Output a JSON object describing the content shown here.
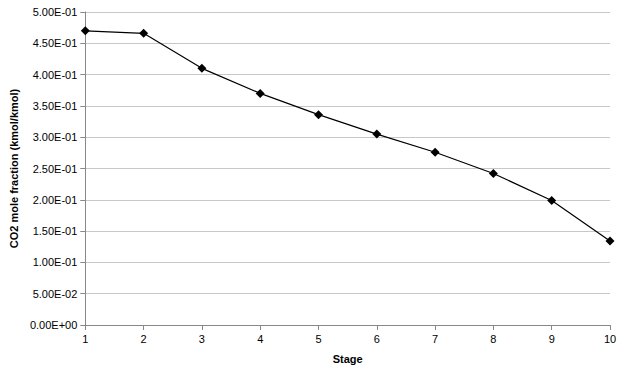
{
  "chart_data": {
    "type": "line",
    "x_label": "Stage",
    "y_label": "CO2 mole fraction (kmol/kmol)",
    "x": [
      1,
      2,
      3,
      4,
      5,
      6,
      7,
      8,
      9,
      10
    ],
    "values": [
      0.47,
      0.466,
      0.41,
      0.37,
      0.336,
      0.305,
      0.276,
      0.242,
      0.199,
      0.134
    ],
    "color": "#000000",
    "marker": "diamond",
    "xlim": [
      1,
      10
    ],
    "xticks": [
      1,
      2,
      3,
      4,
      5,
      6,
      7,
      8,
      9,
      10
    ],
    "ylim": [
      0,
      0.5
    ],
    "yticks": [
      {
        "value": 0,
        "label": "0.00E+00"
      },
      {
        "value": 0.05,
        "label": "5.00E-02"
      },
      {
        "value": 0.1,
        "label": "1.00E-01"
      },
      {
        "value": 0.15,
        "label": "1.50E-01"
      },
      {
        "value": 0.2,
        "label": "2.00E-01"
      },
      {
        "value": 0.25,
        "label": "2.50E-01"
      },
      {
        "value": 0.3,
        "label": "3.00E-01"
      },
      {
        "value": 0.35,
        "label": "3.50E-01"
      },
      {
        "value": 0.4,
        "label": "4.00E-01"
      },
      {
        "value": 0.45,
        "label": "4.50E-01"
      },
      {
        "value": 0.5,
        "label": "5.00E-01"
      }
    ],
    "grid": true
  }
}
